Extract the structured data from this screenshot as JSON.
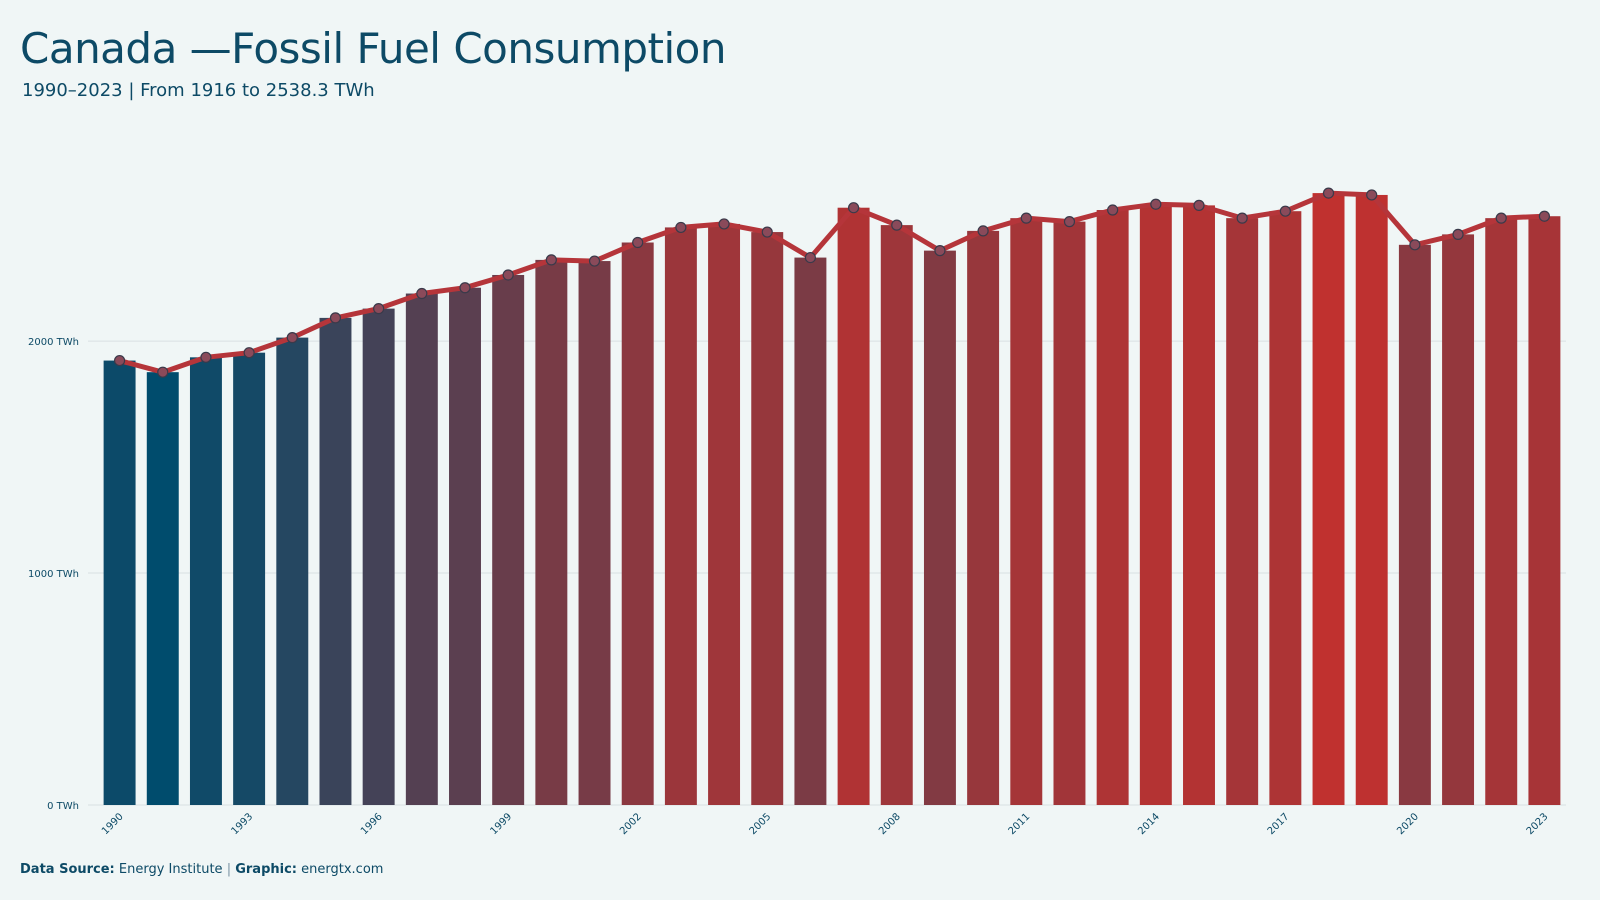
{
  "header": {
    "title": "Canada —Fossil Fuel Consumption",
    "subtitle": "1990–2023 | From 1916 to 2538.3 TWh"
  },
  "footer": {
    "source_label": "Data Source:",
    "source_value": "Energy Institute",
    "separator": "|",
    "graphic_label": "Graphic:",
    "graphic_value": "energtx.com"
  },
  "colors": {
    "background": "#f0f6f6",
    "low": "#004c6d",
    "high": "#c0312f",
    "line": "#b5353a",
    "grid": "#d9e0e3",
    "text": "#0d4a66"
  },
  "chart_data": {
    "type": "bar",
    "categories": [
      "1990",
      "1991",
      "1992",
      "1993",
      "1994",
      "1995",
      "1996",
      "1997",
      "1998",
      "1999",
      "2000",
      "2001",
      "2002",
      "2003",
      "2004",
      "2005",
      "2006",
      "2007",
      "2008",
      "2009",
      "2010",
      "2011",
      "2012",
      "2013",
      "2014",
      "2015",
      "2016",
      "2017",
      "2018",
      "2019",
      "2020",
      "2021",
      "2022",
      "2023"
    ],
    "values": [
      1916,
      1866,
      1930,
      1950,
      2015,
      2100,
      2140,
      2205,
      2230,
      2285,
      2350,
      2345,
      2425,
      2490,
      2505,
      2470,
      2360,
      2575,
      2500,
      2390,
      2475,
      2530,
      2515,
      2565,
      2590,
      2585,
      2530,
      2560,
      2638,
      2630,
      2415,
      2460,
      2530,
      2538.3
    ],
    "line": true,
    "ylim": [
      0,
      2700
    ],
    "yticks": [
      0,
      1000,
      2000
    ],
    "ytick_labels": [
      "0 TWh",
      "1000 TWh",
      "2000 TWh"
    ],
    "xtick_labels": [
      "1990",
      "1993",
      "1996",
      "1999",
      "2002",
      "2005",
      "2008",
      "2011",
      "2014",
      "2017",
      "2020",
      "2023"
    ],
    "grid": true,
    "legend": "none"
  }
}
